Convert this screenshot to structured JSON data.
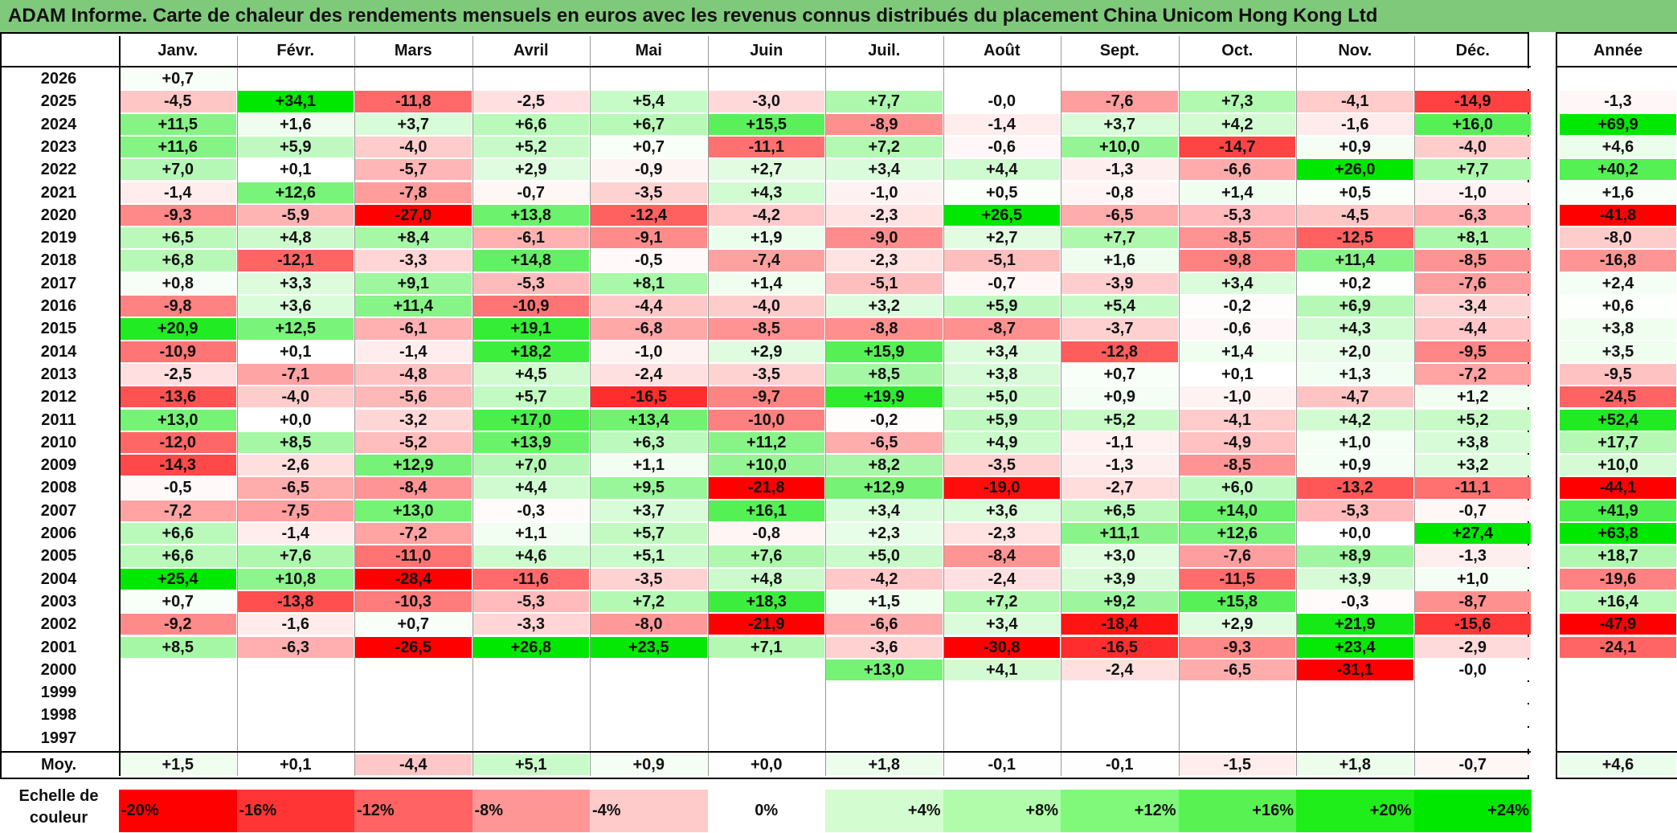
{
  "title": "ADAM Informe. Carte de chaleur des rendements mensuels en euros avec les revenus connus distribués du placement China Unicom Hong Kong Ltd",
  "chart_data": {
    "type": "heatmap",
    "title": "ADAM Informe. Carte de chaleur des rendements mensuels en euros avec les revenus connus distribués du placement China Unicom Hong Kong Ltd",
    "columns": [
      "Janv.",
      "Févr.",
      "Mars",
      "Avril",
      "Mai",
      "Juin",
      "Juil.",
      "Août",
      "Sept.",
      "Oct.",
      "Nov.",
      "Déc."
    ],
    "year_column_label": "Année",
    "rows": [
      {
        "year": "2026",
        "values": [
          "+0,7",
          "",
          "",
          "",
          "",
          "",
          "",
          "",
          "",
          "",
          "",
          ""
        ],
        "annual": ""
      },
      {
        "year": "2025",
        "values": [
          "-4,5",
          "+34,1",
          "-11,8",
          "-2,5",
          "+5,4",
          "-3,0",
          "+7,7",
          "-0,0",
          "-7,6",
          "+7,3",
          "-4,1",
          "-14,9"
        ],
        "annual": "-1,3"
      },
      {
        "year": "2024",
        "values": [
          "+11,5",
          "+1,6",
          "+3,7",
          "+6,6",
          "+6,7",
          "+15,5",
          "-8,9",
          "-1,4",
          "+3,7",
          "+4,2",
          "-1,6",
          "+16,0"
        ],
        "annual": "+69,9"
      },
      {
        "year": "2023",
        "values": [
          "+11,6",
          "+5,9",
          "-4,0",
          "+5,2",
          "+0,7",
          "-11,1",
          "+7,2",
          "-0,6",
          "+10,0",
          "-14,7",
          "+0,9",
          "-4,0"
        ],
        "annual": "+4,6"
      },
      {
        "year": "2022",
        "values": [
          "+7,0",
          "+0,1",
          "-5,7",
          "+2,9",
          "-0,9",
          "+2,7",
          "+3,4",
          "+4,4",
          "-1,3",
          "-6,6",
          "+26,0",
          "+7,7"
        ],
        "annual": "+40,2"
      },
      {
        "year": "2021",
        "values": [
          "-1,4",
          "+12,6",
          "-7,8",
          "-0,7",
          "-3,5",
          "+4,3",
          "-1,0",
          "+0,5",
          "-0,8",
          "+1,4",
          "+0,5",
          "-1,0"
        ],
        "annual": "+1,6"
      },
      {
        "year": "2020",
        "values": [
          "-9,3",
          "-5,9",
          "-27,0",
          "+13,8",
          "-12,4",
          "-4,2",
          "-2,3",
          "+26,5",
          "-6,5",
          "-5,3",
          "-4,5",
          "-6,3"
        ],
        "annual": "-41,8"
      },
      {
        "year": "2019",
        "values": [
          "+6,5",
          "+4,8",
          "+8,4",
          "-6,1",
          "-9,1",
          "+1,9",
          "-9,0",
          "+2,7",
          "+7,7",
          "-8,5",
          "-12,5",
          "+8,1"
        ],
        "annual": "-8,0"
      },
      {
        "year": "2018",
        "values": [
          "+6,8",
          "-12,1",
          "-3,3",
          "+14,8",
          "-0,5",
          "-7,4",
          "-2,3",
          "-5,1",
          "+1,6",
          "-9,8",
          "+11,4",
          "-8,5"
        ],
        "annual": "-16,8"
      },
      {
        "year": "2017",
        "values": [
          "+0,8",
          "+3,3",
          "+9,1",
          "-5,3",
          "+8,1",
          "+1,4",
          "-5,1",
          "-0,7",
          "-3,9",
          "+3,4",
          "+0,2",
          "-7,6"
        ],
        "annual": "+2,4"
      },
      {
        "year": "2016",
        "values": [
          "-9,8",
          "+3,6",
          "+11,4",
          "-10,9",
          "-4,4",
          "-4,0",
          "+3,2",
          "+5,9",
          "+5,4",
          "-0,2",
          "+6,9",
          "-3,4"
        ],
        "annual": "+0,6"
      },
      {
        "year": "2015",
        "values": [
          "+20,9",
          "+12,5",
          "-6,1",
          "+19,1",
          "-6,8",
          "-8,5",
          "-8,8",
          "-8,7",
          "-3,7",
          "-0,6",
          "+4,3",
          "-4,4"
        ],
        "annual": "+3,8"
      },
      {
        "year": "2014",
        "values": [
          "-10,9",
          "+0,1",
          "-1,4",
          "+18,2",
          "-1,0",
          "+2,9",
          "+15,9",
          "+3,4",
          "-12,8",
          "+1,4",
          "+2,0",
          "-9,5"
        ],
        "annual": "+3,5"
      },
      {
        "year": "2013",
        "values": [
          "-2,5",
          "-7,1",
          "-4,8",
          "+4,5",
          "-2,4",
          "-3,5",
          "+8,5",
          "+3,8",
          "+0,7",
          "+0,1",
          "+1,3",
          "-7,2"
        ],
        "annual": "-9,5"
      },
      {
        "year": "2012",
        "values": [
          "-13,6",
          "-4,0",
          "-5,6",
          "+5,7",
          "-16,5",
          "-9,7",
          "+19,9",
          "+5,0",
          "+0,9",
          "-1,0",
          "-4,7",
          "+1,2"
        ],
        "annual": "-24,5"
      },
      {
        "year": "2011",
        "values": [
          "+13,0",
          "+0,0",
          "-3,2",
          "+17,0",
          "+13,4",
          "-10,0",
          "-0,2",
          "+5,9",
          "+5,2",
          "-4,1",
          "+4,2",
          "+5,2"
        ],
        "annual": "+52,4"
      },
      {
        "year": "2010",
        "values": [
          "-12,0",
          "+8,5",
          "-5,2",
          "+13,9",
          "+6,3",
          "+11,2",
          "-6,5",
          "+4,9",
          "-1,1",
          "-4,9",
          "+1,0",
          "+3,8"
        ],
        "annual": "+17,7"
      },
      {
        "year": "2009",
        "values": [
          "-14,3",
          "-2,6",
          "+12,9",
          "+7,0",
          "+1,1",
          "+10,0",
          "+8,2",
          "-3,5",
          "-1,3",
          "-8,5",
          "+0,9",
          "+3,2"
        ],
        "annual": "+10,0"
      },
      {
        "year": "2008",
        "values": [
          "-0,5",
          "-6,5",
          "-8,4",
          "+4,4",
          "+9,5",
          "-21,8",
          "+12,9",
          "-19,0",
          "-2,7",
          "+6,0",
          "-13,2",
          "-11,1"
        ],
        "annual": "-44,1"
      },
      {
        "year": "2007",
        "values": [
          "-7,2",
          "-7,5",
          "+13,0",
          "-0,3",
          "+3,7",
          "+16,1",
          "+3,4",
          "+3,6",
          "+6,5",
          "+14,0",
          "-5,3",
          "-0,7"
        ],
        "annual": "+41,9"
      },
      {
        "year": "2006",
        "values": [
          "+6,6",
          "-1,4",
          "-7,2",
          "+1,1",
          "+5,7",
          "-0,8",
          "+2,3",
          "-2,3",
          "+11,1",
          "+12,6",
          "+0,0",
          "+27,4"
        ],
        "annual": "+63,8"
      },
      {
        "year": "2005",
        "values": [
          "+6,6",
          "+7,6",
          "-11,0",
          "+4,6",
          "+5,1",
          "+7,6",
          "+5,0",
          "-8,4",
          "+3,0",
          "-7,6",
          "+8,9",
          "-1,3"
        ],
        "annual": "+18,7"
      },
      {
        "year": "2004",
        "values": [
          "+25,4",
          "+10,8",
          "-28,4",
          "-11,6",
          "-3,5",
          "+4,8",
          "-4,2",
          "-2,4",
          "+3,9",
          "-11,5",
          "+3,9",
          "+1,0"
        ],
        "annual": "-19,6"
      },
      {
        "year": "2003",
        "values": [
          "+0,7",
          "-13,8",
          "-10,3",
          "-5,3",
          "+7,2",
          "+18,3",
          "+1,5",
          "+7,2",
          "+9,2",
          "+15,8",
          "-0,3",
          "-8,7"
        ],
        "annual": "+16,4"
      },
      {
        "year": "2002",
        "values": [
          "-9,2",
          "-1,6",
          "+0,7",
          "-3,3",
          "-8,0",
          "-21,9",
          "-6,6",
          "+3,4",
          "-18,4",
          "+2,9",
          "+21,9",
          "-15,6"
        ],
        "annual": "-47,9"
      },
      {
        "year": "2001",
        "values": [
          "+8,5",
          "-6,3",
          "-26,5",
          "+26,8",
          "+23,5",
          "+7,1",
          "-3,6",
          "-30,8",
          "-16,5",
          "-9,3",
          "+23,4",
          "-2,9"
        ],
        "annual": "-24,1"
      },
      {
        "year": "2000",
        "values": [
          "",
          "",
          "",
          "",
          "",
          "",
          "+13,0",
          "+4,1",
          "-2,4",
          "-6,5",
          "-31,1",
          "-0,0"
        ],
        "annual": ""
      },
      {
        "year": "1999",
        "values": [
          "",
          "",
          "",
          "",
          "",
          "",
          "",
          "",
          "",
          "",
          "",
          ""
        ],
        "annual": ""
      },
      {
        "year": "1998",
        "values": [
          "",
          "",
          "",
          "",
          "",
          "",
          "",
          "",
          "",
          "",
          "",
          ""
        ],
        "annual": ""
      },
      {
        "year": "1997",
        "values": [
          "",
          "",
          "",
          "",
          "",
          "",
          "",
          "",
          "",
          "",
          "",
          ""
        ],
        "annual": ""
      }
    ],
    "average": {
      "label": "Moy.",
      "values": [
        "+1,5",
        "+0,1",
        "-4,4",
        "+5,1",
        "+0,9",
        "+0,0",
        "+1,8",
        "-0,1",
        "-0,1",
        "-1,5",
        "+1,8",
        "-0,7"
      ],
      "annual": "+4,6"
    },
    "color_scale": {
      "label": "Echelle de couleur",
      "stops": [
        {
          "value": -20,
          "label": "-20%",
          "color": "#ff0000"
        },
        {
          "value": -16,
          "label": "-16%",
          "color": "#ff3535"
        },
        {
          "value": -12,
          "label": "-12%",
          "color": "#ff6363"
        },
        {
          "value": -8,
          "label": "-8%",
          "color": "#ff9696"
        },
        {
          "value": -4,
          "label": "-4%",
          "color": "#ffcaca"
        },
        {
          "value": 0,
          "label": "0%",
          "color": "#ffffff"
        },
        {
          "value": 4,
          "label": "+4%",
          "color": "#d3fcd0"
        },
        {
          "value": 8,
          "label": "+8%",
          "color": "#b0fcab"
        },
        {
          "value": 12,
          "label": "+12%",
          "color": "#80f87a"
        },
        {
          "value": 16,
          "label": "+16%",
          "color": "#58f352"
        },
        {
          "value": 20,
          "label": "+20%",
          "color": "#1fee1a"
        },
        {
          "value": 24,
          "label": "+24%",
          "color": "#00e800"
        }
      ]
    }
  }
}
